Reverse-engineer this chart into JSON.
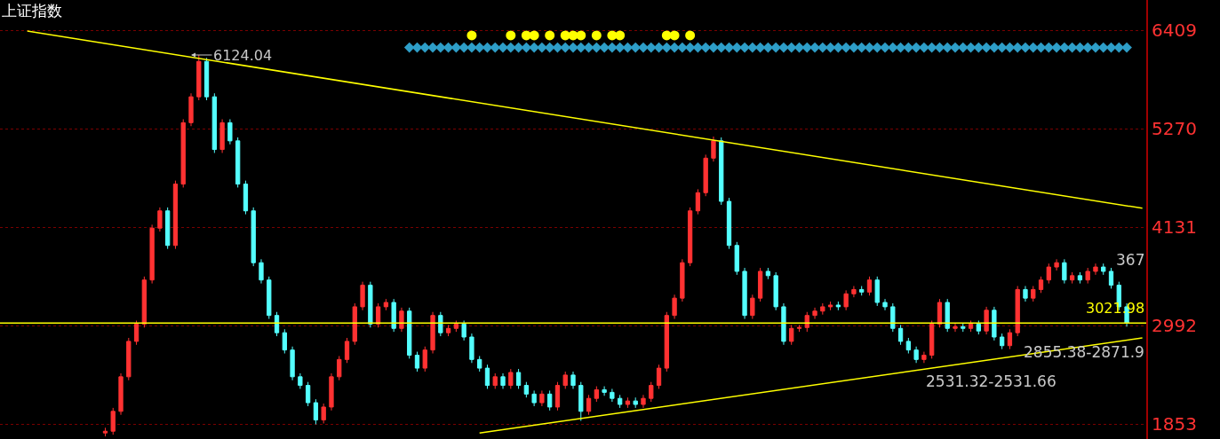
{
  "chart_data": {
    "type": "candlestick",
    "title": "上证指数",
    "categories": [
      null,
      null,
      null,
      null,
      null,
      null,
      null,
      null,
      null,
      null,
      null,
      null,
      null,
      null,
      null,
      null,
      null,
      null,
      null,
      null,
      null,
      null,
      null,
      null,
      null,
      null,
      null,
      null,
      null,
      null,
      null,
      null,
      null,
      null,
      null,
      null,
      null,
      null,
      null,
      null,
      null,
      null,
      null,
      null,
      null,
      null,
      null,
      null,
      null,
      null,
      null,
      null,
      null,
      null,
      null,
      null,
      null,
      null,
      null,
      null,
      null,
      null,
      null,
      null,
      null,
      null,
      null,
      null,
      null,
      null,
      null,
      null,
      null,
      null,
      null,
      null,
      null,
      null,
      null,
      null,
      null,
      null,
      null,
      null,
      null,
      null,
      null,
      null,
      null,
      null,
      null,
      null,
      null,
      null,
      null,
      null,
      null,
      null,
      null,
      null,
      null,
      null,
      null,
      null,
      null,
      null,
      null,
      null,
      null,
      null,
      null,
      null,
      null,
      null,
      null,
      null,
      null,
      null,
      null,
      null,
      null,
      null,
      null,
      null,
      null,
      null,
      null,
      null,
      null,
      null,
      null,
      null,
      null,
      null,
      null,
      null,
      null,
      null,
      null,
      null,
      null,
      null,
      null,
      null,
      null,
      null,
      null
    ],
    "colors": [
      null,
      null,
      null,
      null,
      null,
      null,
      null,
      null,
      null,
      null,
      null,
      null,
      null,
      "#ff3232",
      "#ff3232",
      "#ff3232",
      "#ff3232",
      "#ff3232",
      "#ff3232",
      "#ff3232",
      "#ff3232",
      "#54ffff",
      "#ff3232",
      "#ff3232",
      "#ff3232",
      "#ff3232",
      "#54ffff",
      "#54ffff",
      "#ff3232",
      "#54ffff",
      "#54ffff",
      "#54ffff",
      "#54ffff",
      "#54ffff",
      "#54ffff",
      "#54ffff",
      "#54ffff",
      "#54ffff",
      "#54ffff",
      "#54ffff",
      "#54ffff",
      "#ff3232",
      "#ff3232",
      "#ff3232",
      "#ff3232",
      "#ff3232",
      "#ff3232",
      "#54ffff",
      "#ff3232",
      "#ff3232",
      "#54ffff",
      "#ff3232",
      "#54ffff",
      "#54ffff",
      "#ff3232",
      "#ff3232",
      "#54ffff",
      "#ff3232",
      "#ff3232",
      "#54ffff",
      "#54ffff",
      "#54ffff",
      "#54ffff",
      "#ff3232",
      "#54ffff",
      "#ff3232",
      "#54ffff",
      "#54ffff",
      "#54ffff",
      "#ff3232",
      "#54ffff",
      "#ff3232",
      "#ff3232",
      "#54ffff",
      "#54ffff",
      "#ff3232",
      "#ff3232",
      "#54ffff",
      "#54ffff",
      "#54ffff",
      "#ff3232",
      "#54ffff",
      "#ff3232",
      "#ff3232",
      "#ff3232",
      "#ff3232",
      "#ff3232",
      "#ff3232",
      "#ff3232",
      "#ff3232",
      "#ff3232",
      "#ff3232",
      "#54ffff",
      "#54ffff",
      "#54ffff",
      "#54ffff",
      "#ff3232",
      "#ff3232",
      "#54ffff",
      "#54ffff",
      "#54ffff",
      "#ff3232",
      "#ff3232",
      "#ff3232",
      "#ff3232",
      "#ff3232",
      "#ff3232",
      "#54ffff",
      "#ff3232",
      "#ff3232",
      "#54ffff",
      "#ff3232",
      "#54ffff",
      "#54ffff",
      "#54ffff",
      "#54ffff",
      "#54ffff",
      "#54ffff",
      "#ff3232",
      "#ff3232",
      "#ff3232",
      "#54ffff",
      "#ff3232",
      "#54ffff",
      "#ff3232",
      "#54ffff",
      "#ff3232",
      "#54ffff",
      "#54ffff",
      "#ff3232",
      "#ff3232",
      "#54ffff",
      "#ff3232",
      "#ff3232",
      "#ff3232",
      "#ff3232",
      "#54ffff",
      "#ff3232",
      "#54ffff",
      "#ff3232",
      "#ff3232",
      "#54ffff",
      "#54ffff",
      "#54ffff",
      "#54ffff",
      null,
      null
    ],
    "ohlc": [
      null,
      null,
      null,
      null,
      null,
      null,
      null,
      null,
      null,
      null,
      null,
      null,
      null,
      [
        1750,
        1810,
        1710,
        1770
      ],
      [
        1770,
        2040,
        1730,
        2000
      ],
      [
        2000,
        2440,
        1960,
        2400
      ],
      [
        2400,
        2850,
        2360,
        2810
      ],
      [
        2810,
        3050,
        2770,
        3010
      ],
      [
        3010,
        3560,
        2970,
        3520
      ],
      [
        3520,
        4160,
        3480,
        4120
      ],
      [
        4120,
        4360,
        4080,
        4320
      ],
      [
        4320,
        4360,
        3880,
        3920
      ],
      [
        3920,
        4670,
        3880,
        4630
      ],
      [
        4630,
        5380,
        4590,
        5340
      ],
      [
        5340,
        5680,
        5300,
        5640
      ],
      [
        5640,
        6124.04,
        5600,
        6050
      ],
      [
        6050,
        6090,
        5600,
        5640
      ],
      [
        5640,
        5680,
        4990,
        5030
      ],
      [
        5030,
        5380,
        4990,
        5340
      ],
      [
        5340,
        5380,
        5090,
        5130
      ],
      [
        5130,
        5170,
        4590,
        4630
      ],
      [
        4630,
        4670,
        4280,
        4320
      ],
      [
        4320,
        4360,
        3680,
        3720
      ],
      [
        3720,
        3760,
        3480,
        3520
      ],
      [
        3520,
        3560,
        3070,
        3110
      ],
      [
        3110,
        3150,
        2870,
        2910
      ],
      [
        2910,
        2950,
        2670,
        2710
      ],
      [
        2710,
        2750,
        2360,
        2400
      ],
      [
        2400,
        2440,
        2260,
        2300
      ],
      [
        2300,
        2340,
        2060,
        2100
      ],
      [
        2100,
        2140,
        1850,
        1900
      ],
      [
        1900,
        2090,
        1860,
        2050
      ],
      [
        2050,
        2440,
        2010,
        2400
      ],
      [
        2400,
        2640,
        2360,
        2600
      ],
      [
        2600,
        2850,
        2560,
        2810
      ],
      [
        2810,
        3250,
        2770,
        3210
      ],
      [
        3210,
        3500,
        3170,
        3460
      ],
      [
        3460,
        3500,
        2970,
        3010
      ],
      [
        3010,
        3250,
        2970,
        3210
      ],
      [
        3210,
        3300,
        3170,
        3260
      ],
      [
        3260,
        3300,
        2920,
        2960
      ],
      [
        2960,
        3200,
        2920,
        3160
      ],
      [
        3160,
        3200,
        2610,
        2650
      ],
      [
        2650,
        2690,
        2460,
        2500
      ],
      [
        2500,
        2750,
        2460,
        2710
      ],
      [
        2710,
        3150,
        2670,
        3110
      ],
      [
        3110,
        3150,
        2870,
        2910
      ],
      [
        2910,
        3000,
        2870,
        2960
      ],
      [
        2960,
        3050,
        2920,
        3010
      ],
      [
        3010,
        3050,
        2820,
        2860
      ],
      [
        2860,
        2900,
        2560,
        2600
      ],
      [
        2600,
        2640,
        2460,
        2500
      ],
      [
        2500,
        2540,
        2260,
        2300
      ],
      [
        2300,
        2440,
        2260,
        2400
      ],
      [
        2400,
        2440,
        2260,
        2300
      ],
      [
        2300,
        2490,
        2260,
        2450
      ],
      [
        2450,
        2490,
        2260,
        2300
      ],
      [
        2300,
        2340,
        2160,
        2200
      ],
      [
        2200,
        2240,
        2060,
        2100
      ],
      [
        2100,
        2240,
        2060,
        2200
      ],
      [
        2200,
        2240,
        2010,
        2050
      ],
      [
        2050,
        2340,
        2010,
        2300
      ],
      [
        2300,
        2460,
        2260,
        2420
      ],
      [
        2420,
        2460,
        2260,
        2300
      ],
      [
        2300,
        2340,
        1890,
        2000
      ],
      [
        2000,
        2190,
        1960,
        2150
      ],
      [
        2150,
        2290,
        2110,
        2250
      ],
      [
        2250,
        2290,
        2180,
        2220
      ],
      [
        2220,
        2260,
        2110,
        2150
      ],
      [
        2150,
        2190,
        2040,
        2080
      ],
      [
        2080,
        2160,
        2040,
        2120
      ],
      [
        2120,
        2160,
        2040,
        2080
      ],
      [
        2080,
        2190,
        2040,
        2150
      ],
      [
        2150,
        2340,
        2110,
        2300
      ],
      [
        2300,
        2540,
        2260,
        2500
      ],
      [
        2500,
        3150,
        2460,
        3110
      ],
      [
        3110,
        3350,
        3070,
        3310
      ],
      [
        3310,
        3760,
        3270,
        3720
      ],
      [
        3720,
        4360,
        3680,
        4320
      ],
      [
        4320,
        4570,
        4280,
        4530
      ],
      [
        4530,
        4970,
        4490,
        4930
      ],
      [
        4930,
        5180,
        4890,
        5130
      ],
      [
        5130,
        5170,
        4390,
        4430
      ],
      [
        4430,
        4470,
        3880,
        3920
      ],
      [
        3920,
        3960,
        3580,
        3620
      ],
      [
        3620,
        3660,
        3070,
        3110
      ],
      [
        3110,
        3350,
        3070,
        3310
      ],
      [
        3310,
        3660,
        3270,
        3620
      ],
      [
        3620,
        3660,
        3530,
        3570
      ],
      [
        3570,
        3610,
        3170,
        3210
      ],
      [
        3210,
        3250,
        2770,
        2810
      ],
      [
        2810,
        3000,
        2770,
        2960
      ],
      [
        2960,
        3000,
        2920,
        2970
      ],
      [
        2970,
        3150,
        2920,
        3110
      ],
      [
        3110,
        3200,
        3070,
        3160
      ],
      [
        3160,
        3250,
        3120,
        3210
      ],
      [
        3210,
        3270,
        3170,
        3230
      ],
      [
        3230,
        3270,
        3170,
        3210
      ],
      [
        3210,
        3400,
        3170,
        3360
      ],
      [
        3360,
        3450,
        3320,
        3410
      ],
      [
        3410,
        3450,
        3340,
        3380
      ],
      [
        3380,
        3560,
        3340,
        3520
      ],
      [
        3520,
        3560,
        3220,
        3260
      ],
      [
        3260,
        3300,
        3170,
        3210
      ],
      [
        3210,
        3250,
        2920,
        2960
      ],
      [
        2960,
        3000,
        2770,
        2810
      ],
      [
        2810,
        2850,
        2670,
        2710
      ],
      [
        2710,
        2750,
        2560,
        2600
      ],
      [
        2600,
        2690,
        2560,
        2650
      ],
      [
        2650,
        3050,
        2610,
        3010
      ],
      [
        3010,
        3300,
        2970,
        3260
      ],
      [
        3260,
        3300,
        2920,
        2960
      ],
      [
        2960,
        3020,
        2920,
        2980
      ],
      [
        2980,
        3020,
        2920,
        2960
      ],
      [
        2960,
        3050,
        2920,
        3010
      ],
      [
        3010,
        3050,
        2890,
        2930
      ],
      [
        2930,
        3210,
        2890,
        3170
      ],
      [
        3170,
        3210,
        2820,
        2860
      ],
      [
        2860,
        2900,
        2720,
        2760
      ],
      [
        2760,
        2950,
        2720,
        2910
      ],
      [
        2910,
        3450,
        2870,
        3410
      ],
      [
        3410,
        3450,
        3270,
        3310
      ],
      [
        3310,
        3450,
        3270,
        3410
      ],
      [
        3410,
        3560,
        3370,
        3520
      ],
      [
        3520,
        3710,
        3480,
        3670
      ],
      [
        3670,
        3760,
        3630,
        3720
      ],
      [
        3720,
        3760,
        3480,
        3520
      ],
      [
        3520,
        3610,
        3480,
        3570
      ],
      [
        3570,
        3610,
        3480,
        3520
      ],
      [
        3520,
        3660,
        3480,
        3620
      ],
      [
        3620,
        3710,
        3580,
        3670
      ],
      [
        3670,
        3710,
        3580,
        3620
      ],
      [
        3620,
        3660,
        3420,
        3460
      ],
      [
        3460,
        3500,
        3170,
        3210
      ],
      [
        3210,
        3250,
        2980,
        3020
      ],
      null,
      null
    ],
    "series": [
      {
        "type": "line",
        "color": "#ffff00",
        "values": [
          null,
          null,
          null,
          6400,
          null,
          null,
          null,
          null,
          null,
          null,
          null,
          null,
          null,
          null,
          null,
          null,
          null,
          null,
          null,
          null,
          null,
          null,
          null,
          null,
          null,
          null,
          null,
          null,
          null,
          null,
          null,
          null,
          null,
          null,
          null,
          null,
          null,
          null,
          null,
          null,
          null,
          null,
          null,
          null,
          null,
          null,
          null,
          null,
          null,
          null,
          null,
          null,
          null,
          null,
          null,
          null,
          null,
          null,
          null,
          null,
          null,
          null,
          null,
          null,
          null,
          null,
          null,
          null,
          null,
          null,
          null,
          null,
          null,
          null,
          null,
          null,
          null,
          null,
          null,
          null,
          null,
          null,
          null,
          null,
          null,
          null,
          null,
          null,
          null,
          null,
          null,
          null,
          null,
          null,
          null,
          null,
          null,
          null,
          null,
          null,
          null,
          null,
          null,
          null,
          null,
          null,
          null,
          null,
          null,
          null,
          null,
          null,
          null,
          null,
          null,
          null,
          null,
          null,
          null,
          null,
          null,
          null,
          null,
          null,
          null,
          null,
          null,
          null,
          null,
          null,
          null,
          null,
          null,
          null,
          null,
          null,
          null,
          null,
          null,
          null,
          null,
          null,
          null,
          null,
          null,
          null,
          4350
        ]
      },
      {
        "type": "line",
        "color": "#ffff00",
        "values": [
          null,
          null,
          null,
          null,
          null,
          null,
          null,
          null,
          null,
          null,
          null,
          null,
          null,
          null,
          null,
          null,
          null,
          null,
          null,
          null,
          null,
          null,
          null,
          null,
          null,
          null,
          null,
          null,
          null,
          null,
          null,
          null,
          null,
          null,
          null,
          null,
          null,
          null,
          null,
          null,
          null,
          null,
          null,
          null,
          null,
          null,
          null,
          null,
          null,
          null,
          null,
          null,
          null,
          null,
          null,
          null,
          null,
          null,
          null,
          null,
          null,
          1750,
          null,
          null,
          null,
          null,
          null,
          null,
          null,
          null,
          null,
          null,
          null,
          null,
          null,
          null,
          null,
          null,
          null,
          null,
          null,
          null,
          null,
          null,
          null,
          null,
          null,
          null,
          null,
          null,
          null,
          null,
          null,
          null,
          null,
          null,
          null,
          null,
          null,
          null,
          null,
          null,
          null,
          null,
          null,
          null,
          null,
          null,
          null,
          null,
          null,
          null,
          null,
          null,
          null,
          null,
          null,
          null,
          null,
          null,
          null,
          null,
          null,
          null,
          null,
          null,
          null,
          null,
          null,
          null,
          null,
          null,
          null,
          null,
          null,
          null,
          null,
          null,
          null,
          null,
          null,
          null,
          null,
          null,
          null,
          null,
          2850
        ]
      },
      {
        "type": "scatter",
        "marker": "circle",
        "color": "#ffff00",
        "values": [
          null,
          null,
          null,
          null,
          null,
          null,
          null,
          null,
          null,
          null,
          null,
          null,
          null,
          null,
          null,
          null,
          null,
          null,
          null,
          null,
          null,
          null,
          null,
          null,
          null,
          null,
          null,
          null,
          null,
          null,
          null,
          null,
          null,
          null,
          null,
          null,
          null,
          null,
          null,
          null,
          null,
          null,
          null,
          null,
          null,
          null,
          null,
          null,
          null,
          null,
          null,
          null,
          null,
          null,
          null,
          null,
          null,
          null,
          null,
          null,
          6350,
          null,
          null,
          null,
          null,
          6350,
          null,
          6350,
          6350,
          null,
          6350,
          null,
          6350,
          6350,
          6350,
          null,
          6350,
          null,
          6350,
          6350,
          null,
          null,
          null,
          null,
          null,
          6350,
          6350,
          null,
          6350,
          null,
          null,
          null,
          null,
          null,
          null,
          null,
          null,
          null,
          null,
          null,
          null,
          null,
          null,
          null,
          null,
          null,
          null,
          null,
          null,
          null,
          null,
          null,
          null,
          null,
          null,
          null,
          null,
          null,
          null,
          null,
          null,
          null,
          null,
          null,
          null,
          null,
          null,
          null,
          null,
          null,
          null,
          null,
          null,
          null,
          null,
          null,
          null,
          null,
          null,
          null,
          null,
          null,
          null,
          null,
          null,
          null,
          null
        ]
      },
      {
        "type": "scatter",
        "marker": "diamond",
        "color": "#2e9ec8",
        "values": [
          null,
          null,
          null,
          null,
          null,
          null,
          null,
          null,
          null,
          null,
          null,
          null,
          null,
          null,
          null,
          null,
          null,
          null,
          null,
          null,
          null,
          null,
          null,
          null,
          null,
          null,
          null,
          null,
          null,
          null,
          null,
          null,
          null,
          null,
          null,
          null,
          null,
          null,
          null,
          null,
          null,
          null,
          null,
          null,
          null,
          null,
          null,
          null,
          null,
          null,
          null,
          null,
          6210,
          6210,
          6210,
          6210,
          6210,
          6210,
          6210,
          6210,
          6210,
          6210,
          6210,
          6210,
          6210,
          6210,
          6210,
          6210,
          6210,
          6210,
          6210,
          6210,
          6210,
          6210,
          6210,
          6210,
          6210,
          6210,
          6210,
          6210,
          6210,
          6210,
          6210,
          6210,
          6210,
          6210,
          6210,
          6210,
          6210,
          6210,
          6210,
          6210,
          6210,
          6210,
          6210,
          6210,
          6210,
          6210,
          6210,
          6210,
          6210,
          6210,
          6210,
          6210,
          6210,
          6210,
          6210,
          6210,
          6210,
          6210,
          6210,
          6210,
          6210,
          6210,
          6210,
          6210,
          6210,
          6210,
          6210,
          6210,
          6210,
          6210,
          6210,
          6210,
          6210,
          6210,
          6210,
          6210,
          6210,
          6210,
          6210,
          6210,
          6210,
          6210,
          6210,
          6210,
          6210,
          6210,
          6210,
          6210,
          6210,
          6210,
          6210,
          6210,
          6210,
          null,
          null
        ]
      }
    ],
    "ref_lines": [
      {
        "axis": "y",
        "value": 3021.98,
        "label": "3021.98",
        "color": "#ffff00"
      }
    ],
    "annotations": [
      "6124.04",
      "367",
      "2855.38-2871.9",
      "2531.32-2531.66"
    ],
    "ylim": [
      1680,
      6760
    ],
    "yticks": [
      1853,
      2992,
      4131,
      5270,
      6409
    ],
    "grid": "y",
    "tick_labels": "y"
  }
}
